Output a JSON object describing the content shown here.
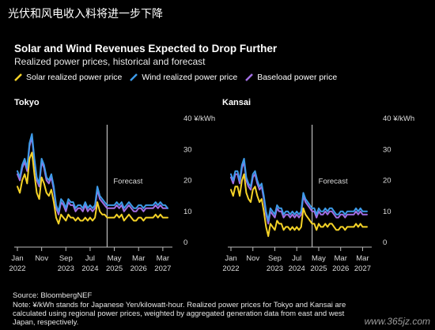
{
  "header": {
    "headline": "光伏和风电收入料将进一步下降",
    "title": "Solar and Wind Revenues Expected to Drop Further",
    "subtitle": "Realized power prices, historical and forecast"
  },
  "legend": {
    "solar": "Solar realized power price",
    "wind": "Wind realized power price",
    "baseload": "Baseload power price"
  },
  "colors": {
    "solar": "#f5d327",
    "wind": "#3d9be9",
    "baseload": "#a26fe4",
    "axis": "#bbbbbb"
  },
  "footer": {
    "source": "Source: BloombergNEF",
    "note_line1": "Note: ¥/kWh stands for Japanese Yen/kilowatt-hour. Realized power prices for Tokyo and Kansai are",
    "note_line2": "calculated using regional power prices, weighted by aggregated generation data from east and west",
    "note_line3": "Japan, respectively."
  },
  "watermark": "www.365jz.com",
  "chart_data": [
    {
      "type": "line",
      "panel_title": "Tokyo",
      "unit_label": "40 ¥/kWh",
      "ylim": [
        0,
        40
      ],
      "yticks": [
        "10",
        "20",
        "30"
      ],
      "ytick_values": [
        10,
        20,
        30
      ],
      "xlim": [
        0,
        62
      ],
      "xticks": [
        {
          "x": 0,
          "month": "Jan",
          "year": "2022"
        },
        {
          "x": 10,
          "month": "Nov",
          "year": ""
        },
        {
          "x": 20,
          "month": "Sep",
          "year": "2023"
        },
        {
          "x": 30,
          "month": "Jul",
          "year": "2024"
        },
        {
          "x": 40,
          "month": "May",
          "year": "2025"
        },
        {
          "x": 50,
          "month": "Mar",
          "year": "2026"
        },
        {
          "x": 60,
          "month": "Mar",
          "year": "2027"
        }
      ],
      "forecast_label": "Forecast",
      "forecast_start_x": 37,
      "series": [
        {
          "key": "baseload",
          "values": [
            22,
            20,
            24,
            26,
            23,
            31,
            34,
            26,
            20,
            18,
            26,
            24,
            20,
            19,
            21,
            17,
            11,
            9,
            13,
            12,
            10,
            13,
            12,
            12,
            10,
            11,
            11,
            10,
            12,
            10,
            11,
            10,
            11,
            17,
            14,
            13,
            12,
            11,
            11,
            11,
            11,
            12,
            11,
            12,
            10,
            11,
            12,
            11,
            10,
            10,
            11,
            11,
            10,
            11,
            11,
            11,
            11,
            12,
            11,
            12,
            11,
            11,
            11
          ]
        },
        {
          "key": "wind",
          "values": [
            23,
            21,
            25,
            27,
            24,
            32,
            35,
            27,
            21,
            19,
            27,
            25,
            21,
            20,
            22,
            18,
            12,
            10,
            14,
            13,
            11,
            14,
            13,
            13,
            11,
            12,
            12,
            11,
            13,
            11,
            12,
            11,
            12,
            18,
            15,
            14,
            13,
            12,
            12,
            12,
            12,
            13,
            12,
            13,
            11,
            12,
            13,
            12,
            11,
            11,
            12,
            12,
            11,
            12,
            12,
            12,
            12,
            13,
            12,
            13,
            12,
            12,
            11
          ]
        },
        {
          "key": "solar",
          "values": [
            18,
            16,
            20,
            22,
            19,
            27,
            29,
            22,
            16,
            14,
            21,
            19,
            16,
            15,
            17,
            13,
            8,
            6,
            9,
            8,
            7,
            9,
            8,
            8,
            7,
            8,
            7,
            7,
            8,
            7,
            8,
            7,
            8,
            13,
            10,
            9,
            9,
            8,
            8,
            8,
            8,
            9,
            8,
            9,
            7,
            8,
            9,
            8,
            7,
            7,
            8,
            8,
            7,
            8,
            8,
            8,
            8,
            9,
            8,
            9,
            8,
            8,
            8
          ]
        }
      ]
    },
    {
      "type": "line",
      "panel_title": "Kansai",
      "unit_label": "40 ¥/kWh",
      "ylim": [
        0,
        40
      ],
      "yticks": [
        "10",
        "20",
        "30"
      ],
      "ytick_values": [
        10,
        20,
        30
      ],
      "xlim": [
        0,
        62
      ],
      "xticks": [
        {
          "x": 0,
          "month": "Jan",
          "year": "2022"
        },
        {
          "x": 10,
          "month": "Nov",
          "year": ""
        },
        {
          "x": 20,
          "month": "Sep",
          "year": "2023"
        },
        {
          "x": 30,
          "month": "Jul",
          "year": "2024"
        },
        {
          "x": 40,
          "month": "May",
          "year": "2025"
        },
        {
          "x": 50,
          "month": "Mar",
          "year": "2026"
        },
        {
          "x": 60,
          "month": "Mar",
          "year": "2027"
        }
      ],
      "forecast_label": "Forecast",
      "forecast_start_x": 37,
      "series": [
        {
          "key": "baseload",
          "values": [
            21,
            19,
            22,
            22,
            19,
            24,
            26,
            20,
            18,
            17,
            21,
            22,
            19,
            17,
            18,
            14,
            9,
            6,
            10,
            9,
            8,
            11,
            10,
            10,
            8,
            9,
            9,
            8,
            9,
            8,
            9,
            8,
            9,
            15,
            13,
            12,
            11,
            10,
            10,
            8,
            10,
            9,
            9,
            10,
            9,
            10,
            10,
            9,
            8,
            8,
            9,
            9,
            8,
            9,
            9,
            9,
            9,
            10,
            9,
            10,
            9,
            9,
            9
          ]
        },
        {
          "key": "wind",
          "values": [
            22,
            20,
            23,
            23,
            20,
            25,
            27,
            21,
            19,
            18,
            22,
            23,
            20,
            18,
            19,
            15,
            10,
            7,
            11,
            10,
            9,
            12,
            11,
            11,
            9,
            10,
            10,
            9,
            10,
            9,
            10,
            9,
            10,
            16,
            14,
            13,
            12,
            11,
            11,
            9,
            11,
            10,
            10,
            11,
            10,
            11,
            11,
            10,
            9,
            9,
            10,
            10,
            9,
            10,
            10,
            10,
            10,
            11,
            10,
            11,
            10,
            10,
            10
          ]
        },
        {
          "key": "solar",
          "values": [
            17,
            15,
            18,
            18,
            15,
            20,
            22,
            16,
            14,
            13,
            17,
            18,
            15,
            13,
            14,
            10,
            5,
            2,
            6,
            5,
            4,
            7,
            6,
            6,
            4,
            5,
            5,
            4,
            5,
            4,
            5,
            4,
            5,
            11,
            9,
            8,
            7,
            6,
            6,
            4,
            6,
            5,
            5,
            6,
            5,
            6,
            6,
            5,
            4,
            4,
            5,
            5,
            4,
            5,
            5,
            5,
            5,
            6,
            5,
            6,
            5,
            5,
            5
          ]
        }
      ]
    }
  ]
}
